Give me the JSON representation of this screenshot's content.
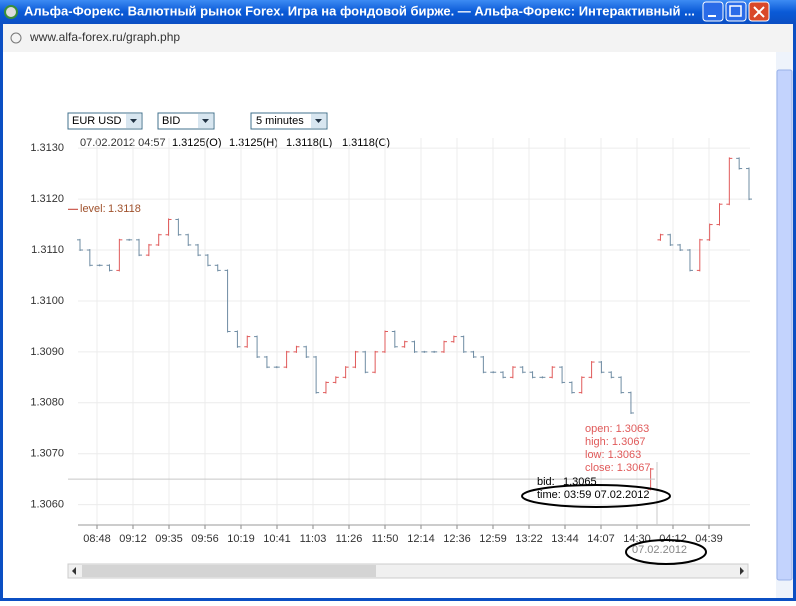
{
  "window": {
    "title": "Альфа-Форекс. Валютный рынок Forex. Игра на фондовой бирже. — Альфа-Форекс: Интерактивный ...",
    "url": "www.alfa-forex.ru/graph.php"
  },
  "toolbar": {
    "symbol": "EUR USD",
    "price": "BID",
    "interval": "5 minutes"
  },
  "info": {
    "datetime": "07.02.2012 04:57",
    "open": "1.3125(O)",
    "high": "1.3125(H)",
    "low": "1.3118(L)",
    "close": "1.3118(C)"
  },
  "chart_data": {
    "type": "ohlc",
    "ylim": [
      1.3056,
      1.3132
    ],
    "yticks": [
      {
        "value": 1.306,
        "label": "1.3060"
      },
      {
        "value": 1.307,
        "label": "1.3070"
      },
      {
        "value": 1.308,
        "label": "1.3080"
      },
      {
        "value": 1.309,
        "label": "1.3090"
      },
      {
        "value": 1.31,
        "label": "1.3100"
      },
      {
        "value": 1.311,
        "label": "1.3110"
      },
      {
        "value": 1.312,
        "label": "1.3120"
      },
      {
        "value": 1.313,
        "label": "1.3130"
      }
    ],
    "xtick_labels": [
      "08:48",
      "09:12",
      "09:35",
      "09:56",
      "10:19",
      "10:41",
      "11:03",
      "11:26",
      "11:50",
      "12:14",
      "12:36",
      "12:59",
      "13:22",
      "13:44",
      "14:07",
      "14:30",
      "04:12",
      "04:39"
    ],
    "grid": true,
    "up_color": "#e05a5a",
    "down_color": "#6f8ca3",
    "open": [
      1.3112,
      1.311,
      1.3107,
      1.3107,
      1.3106,
      1.3112,
      1.3112,
      1.3109,
      1.3111,
      1.3113,
      1.3116,
      1.3113,
      1.3111,
      1.3109,
      1.3107,
      1.3106,
      1.3094,
      1.3091,
      1.3093,
      1.3089,
      1.3087,
      1.3087,
      1.309,
      1.3091,
      1.3089,
      1.3082,
      1.3084,
      1.3085,
      1.3087,
      1.309,
      1.3086,
      1.309,
      1.3094,
      1.3091,
      1.3092,
      1.309,
      1.309,
      1.309,
      1.3092,
      1.3093,
      1.309,
      1.3089,
      1.3086,
      1.3086,
      1.3085,
      1.3087,
      1.3086,
      1.3085,
      1.3085,
      1.3087,
      1.3084,
      1.3082,
      1.3085,
      1.3088,
      1.3086,
      1.3085,
      1.3082,
      null,
      1.3063,
      1.3112,
      1.3113,
      1.3111,
      1.311,
      1.3106,
      1.3112,
      1.3115,
      1.3119,
      1.3128,
      1.3126
    ],
    "close": [
      1.311,
      1.3107,
      1.3107,
      1.3106,
      1.3112,
      1.3112,
      1.3109,
      1.3111,
      1.3113,
      1.3116,
      1.3113,
      1.3111,
      1.3109,
      1.3107,
      1.3106,
      1.3094,
      1.3091,
      1.3093,
      1.3089,
      1.3087,
      1.3087,
      1.309,
      1.3091,
      1.3089,
      1.3082,
      1.3084,
      1.3085,
      1.3087,
      1.309,
      1.3086,
      1.309,
      1.3094,
      1.3091,
      1.3092,
      1.309,
      1.309,
      1.309,
      1.3092,
      1.3093,
      1.309,
      1.3089,
      1.3086,
      1.3086,
      1.3085,
      1.3087,
      1.3086,
      1.3085,
      1.3085,
      1.3087,
      1.3084,
      1.3082,
      1.3085,
      1.3088,
      1.3086,
      1.3085,
      1.3082,
      1.3078,
      null,
      1.3067,
      1.3113,
      1.3111,
      1.311,
      1.3106,
      1.3112,
      1.3115,
      1.3119,
      1.3128,
      1.3126,
      1.312
    ],
    "level": {
      "label": "level:",
      "value": 1.3118
    },
    "crosshair": {
      "bid_label": "bid:",
      "bid": 1.3065,
      "time": "time: 03:59 07.02.2012",
      "date": "07.02.2012"
    },
    "tooltip": {
      "open": "open: 1.3063",
      "high": "high:  1.3067",
      "low": "low:   1.3063",
      "close": "close: 1.3067"
    }
  }
}
